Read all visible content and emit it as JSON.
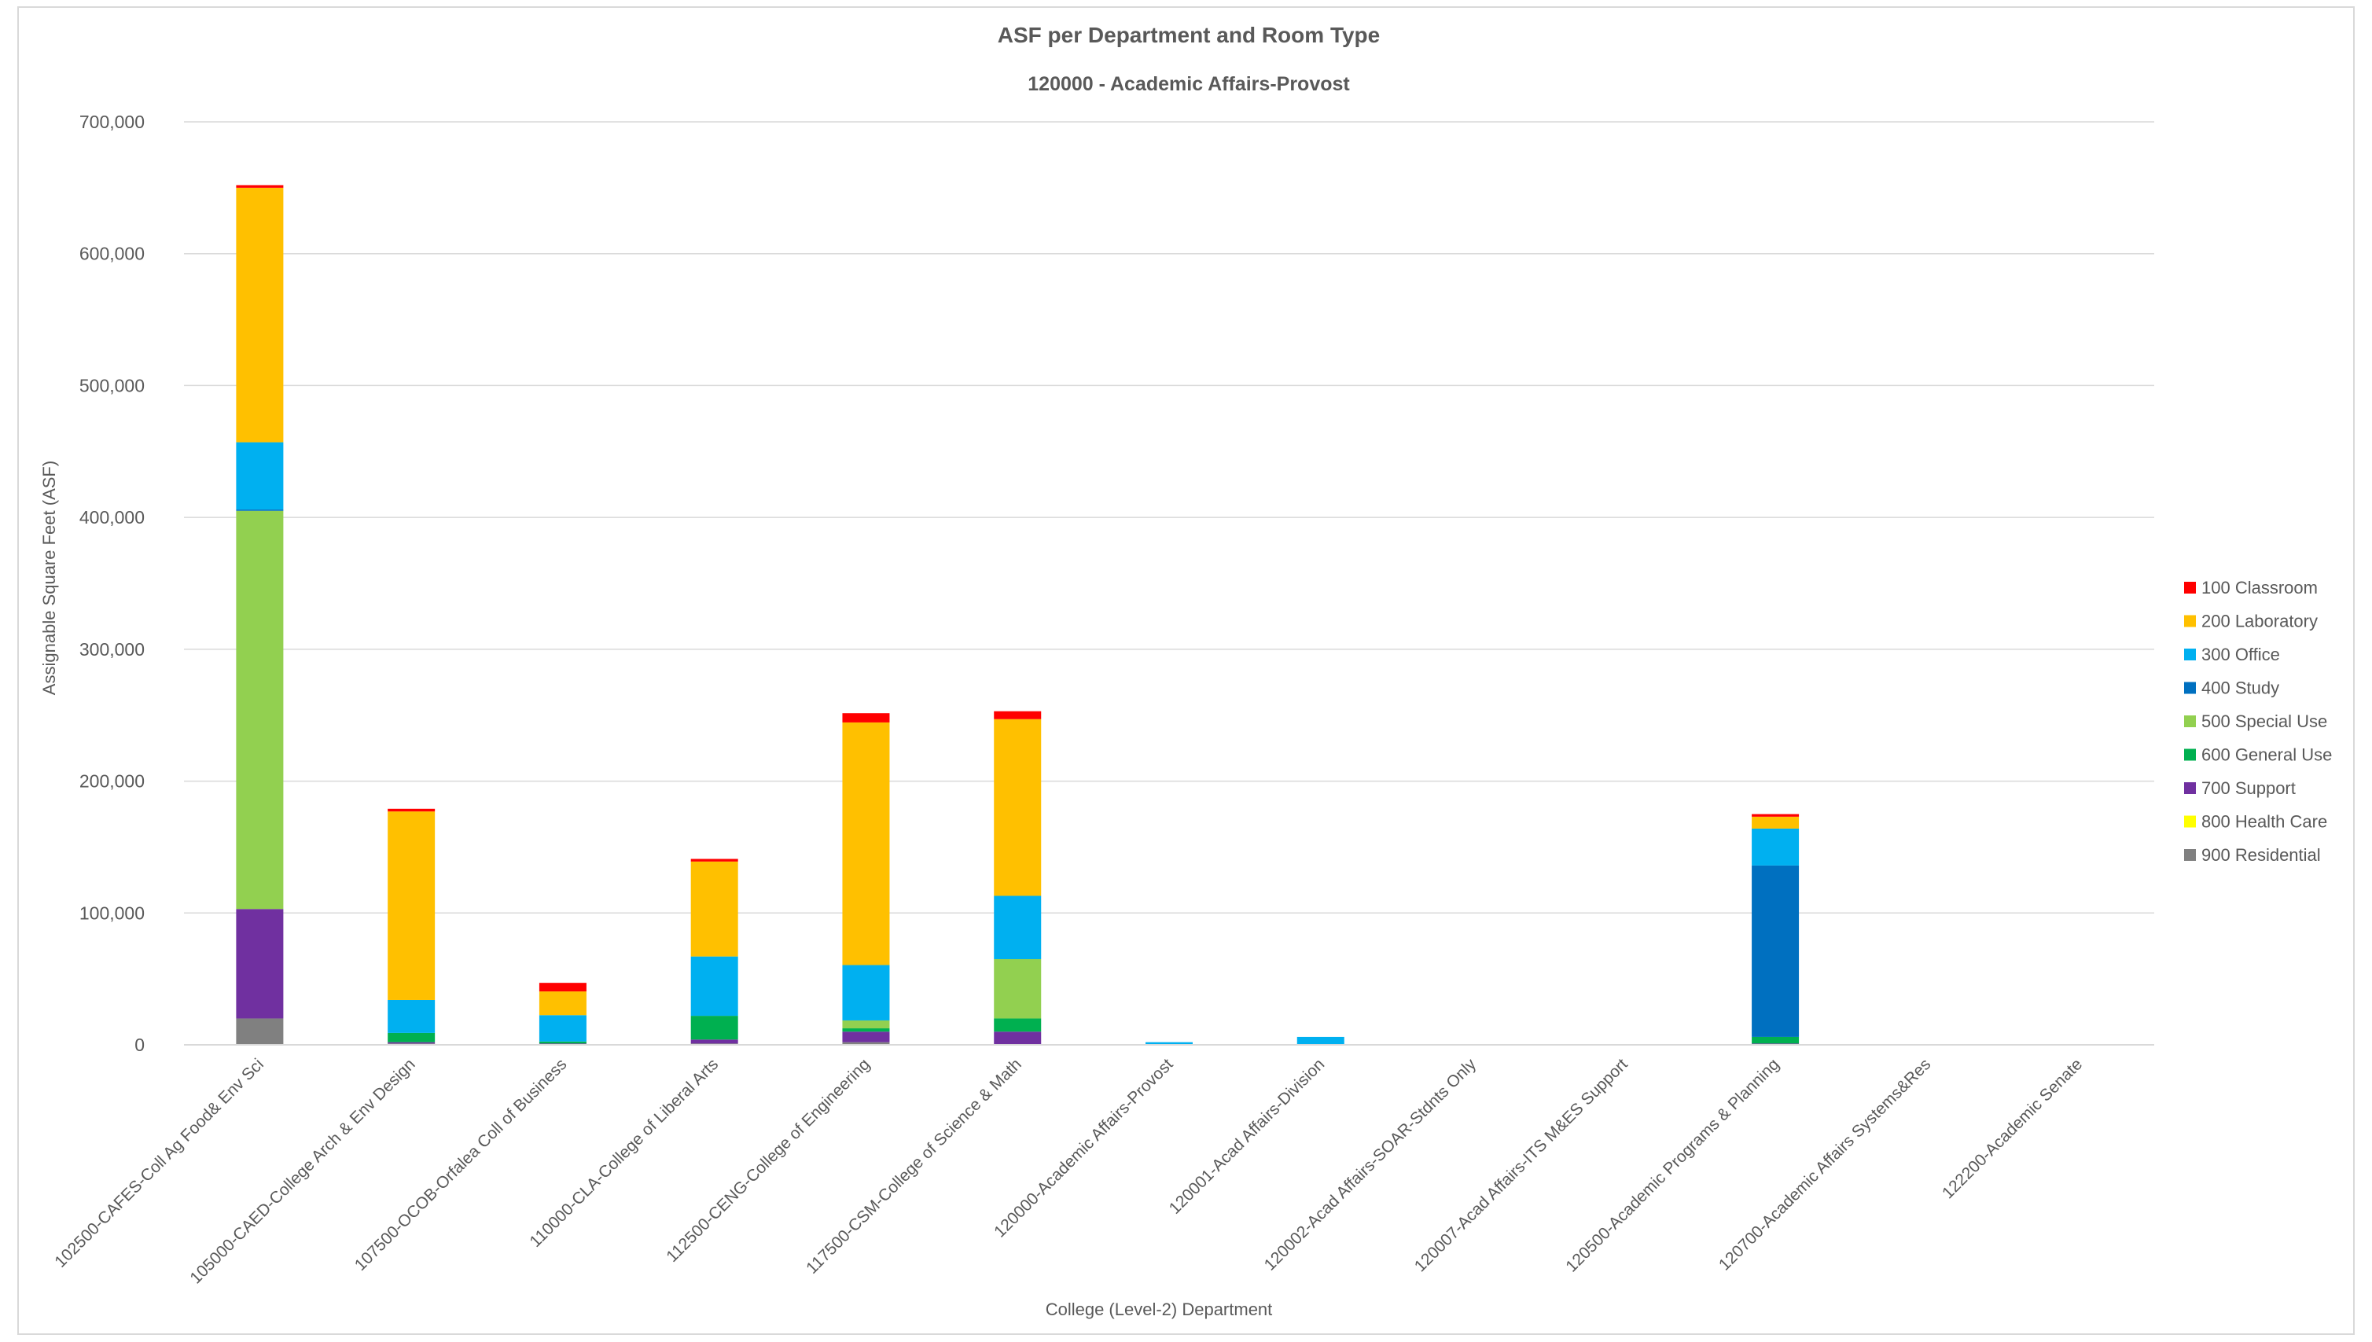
{
  "chart_data": {
    "type": "bar",
    "stacked": true,
    "title": "ASF per Department and Room Type",
    "subtitle": "120000 - Academic Affairs-Provost",
    "xlabel": "College (Level-2) Department",
    "ylabel": "Assignable Square Feet (ASF)",
    "ylim": [
      0,
      700000
    ],
    "yticks": [
      "0",
      "100,000",
      "200,000",
      "300,000",
      "400,000",
      "500,000",
      "600,000",
      "700,000"
    ],
    "grid": true,
    "legend_position": "right",
    "categories": [
      "102500-CAFES-Coll Ag Food& Env Sci",
      "105000-CAED-College Arch & Env Design",
      "107500-OCOB-Orfalea Coll of Business",
      "110000-CLA-College of Liberal Arts",
      "112500-CENG-College of Engineering",
      "117500-CSM-College of Science & Math",
      "120000-Academic Affairs-Provost",
      "120001-Acad Affairs-Division",
      "120002-Acad Affairs-SOAR-Stdnts Only",
      "120007-Acad Affairs-ITS M&ES Support",
      "120500-Academic Programs & Planning",
      "120700-Academic Affairs Systems&Res",
      "122200-Academic Senate"
    ],
    "series": [
      {
        "name": "900 Residential",
        "color": "#808080",
        "values": [
          20000,
          1000,
          0,
          1000,
          2000,
          0,
          0,
          0,
          0,
          0,
          0,
          0,
          0
        ]
      },
      {
        "name": "800 Health Care",
        "color": "#ffff00",
        "values": [
          0,
          0,
          0,
          0,
          0,
          0,
          0,
          0,
          0,
          0,
          0,
          0,
          0
        ]
      },
      {
        "name": "700 Support",
        "color": "#7030a0",
        "values": [
          83000,
          1000,
          1000,
          3000,
          8000,
          10000,
          0,
          0,
          0,
          0,
          1000,
          0,
          0
        ]
      },
      {
        "name": "600 General Use",
        "color": "#00b050",
        "values": [
          0,
          7000,
          1500,
          18000,
          2500,
          10000,
          0,
          0,
          0,
          0,
          5000,
          0,
          0
        ]
      },
      {
        "name": "500 Special Use",
        "color": "#92d050",
        "values": [
          302000,
          0,
          0,
          0,
          6000,
          45000,
          0,
          0,
          0,
          0,
          0,
          0,
          0
        ]
      },
      {
        "name": "400 Study",
        "color": "#0070c0",
        "values": [
          1000,
          0,
          0,
          0,
          0,
          0,
          0,
          0,
          0,
          0,
          130000,
          0,
          0
        ]
      },
      {
        "name": "300 Office",
        "color": "#00b0f0",
        "values": [
          51000,
          25000,
          20000,
          45000,
          42000,
          48000,
          2000,
          6000,
          0,
          0,
          28000,
          0,
          0
        ]
      },
      {
        "name": "200 Laboratory",
        "color": "#ffc000",
        "values": [
          193000,
          143000,
          18000,
          72000,
          184000,
          134000,
          0,
          0,
          0,
          0,
          9000,
          0,
          0
        ]
      },
      {
        "name": "100 Classroom",
        "color": "#ff0000",
        "values": [
          2000,
          2000,
          6500,
          2000,
          7000,
          6000,
          0,
          0,
          0,
          0,
          2000,
          0,
          0
        ]
      }
    ]
  }
}
